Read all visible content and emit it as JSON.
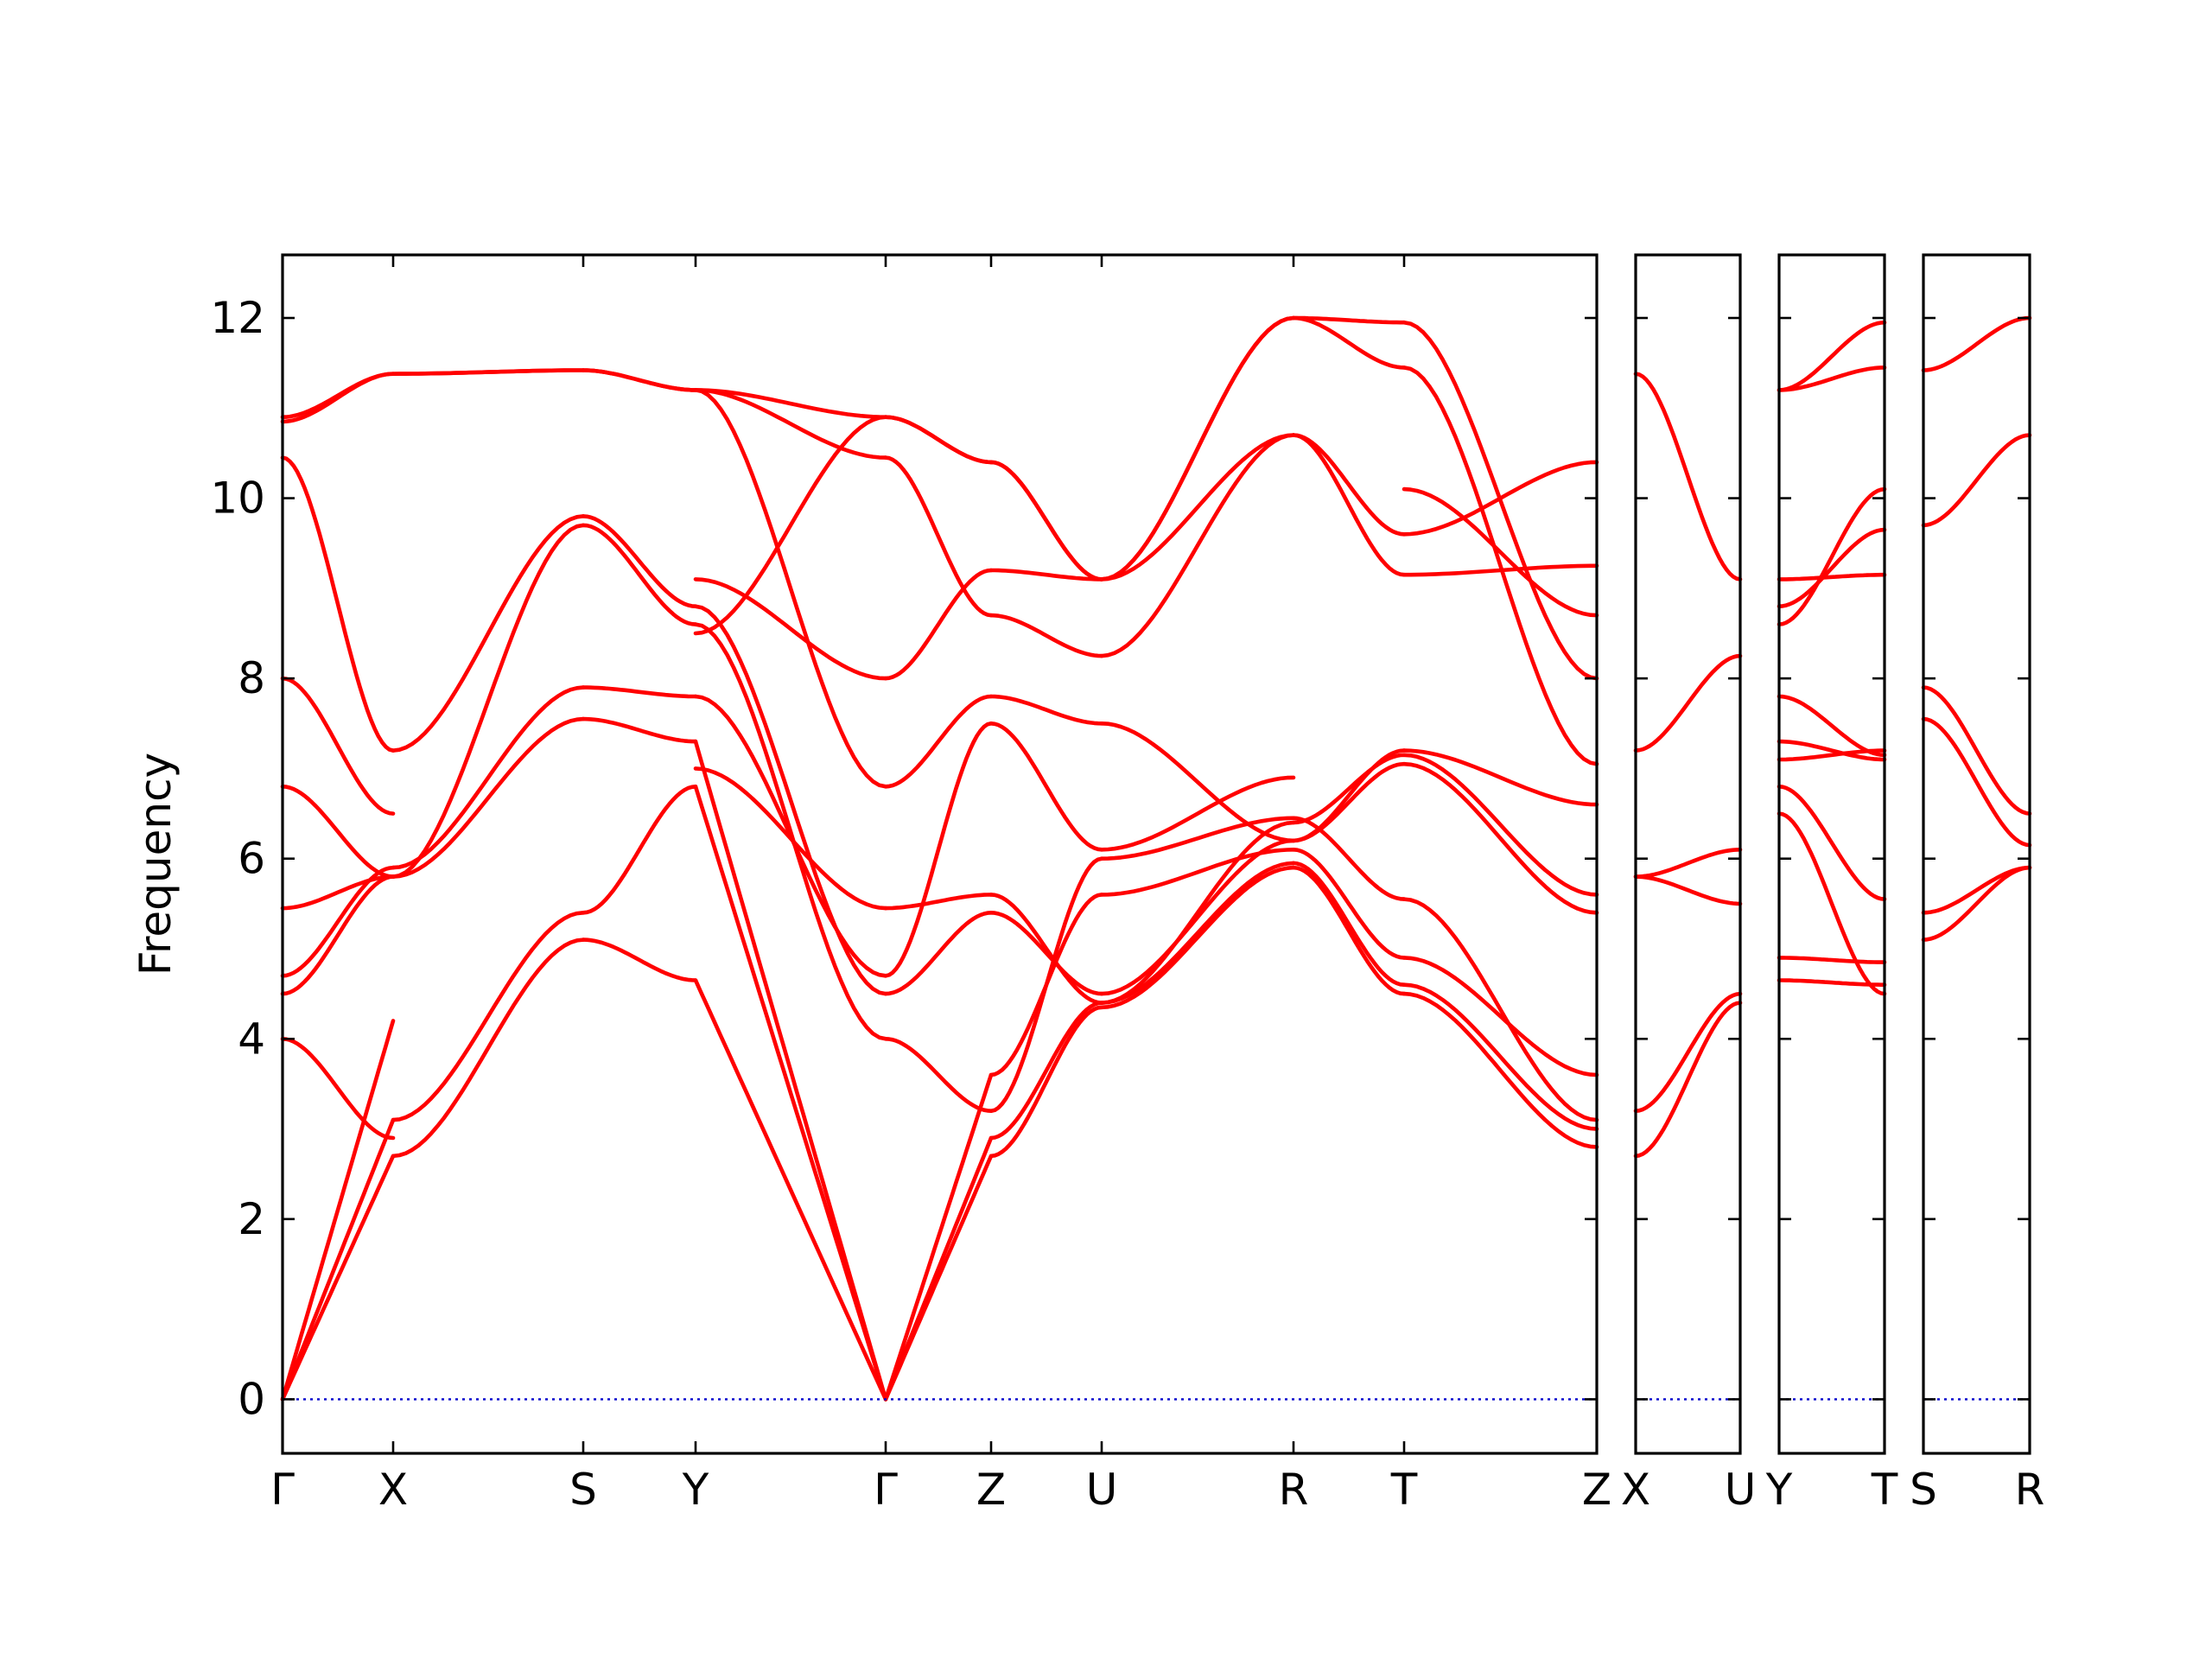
{
  "chart_data": {
    "type": "line",
    "ylabel": "Frequency",
    "ylim": [
      -0.6,
      12.7
    ],
    "yticks": [
      0,
      2,
      4,
      6,
      8,
      10,
      12
    ],
    "grid": false,
    "colors": {
      "bands": "#ff0000",
      "zero_line": "#0000cc",
      "frame": "#000000"
    },
    "panels": [
      {
        "segments": [
          {
            "from": "Γ",
            "to": "X",
            "bands": [
              [
                0,
                2.7
              ],
              [
                0,
                3.1
              ],
              [
                0,
                4.2
              ],
              [
                4.0,
                2.9
              ],
              [
                4.7,
                5.9
              ],
              [
                4.5,
                5.8
              ],
              [
                5.45,
                5.8
              ],
              [
                6.8,
                5.8
              ],
              [
                8.0,
                6.5
              ],
              [
                10.45,
                7.2
              ],
              [
                10.85,
                11.38
              ],
              [
                10.9,
                11.38
              ]
            ]
          },
          {
            "from": "X",
            "to": "S",
            "bands": [
              [
                2.7,
                5.1
              ],
              [
                3.1,
                5.4
              ],
              [
                5.8,
                7.55
              ],
              [
                5.9,
                7.9
              ],
              [
                5.8,
                9.7
              ],
              [
                7.2,
                9.8
              ],
              [
                11.38,
                11.42
              ],
              [
                11.38,
                11.42
              ]
            ]
          },
          {
            "from": "S",
            "to": "Y",
            "bands": [
              [
                5.1,
                4.65
              ],
              [
                5.4,
                6.8
              ],
              [
                7.55,
                7.3
              ],
              [
                7.9,
                7.8
              ],
              [
                9.7,
                8.6
              ],
              [
                9.8,
                8.8
              ],
              [
                11.42,
                11.2
              ],
              [
                11.42,
                11.2
              ]
            ]
          },
          {
            "from": "Y",
            "to": "Γ",
            "bands": [
              [
                4.65,
                0
              ],
              [
                6.8,
                0
              ],
              [
                7.3,
                0
              ],
              [
                7.8,
                4.7
              ],
              [
                8.6,
                4.0
              ],
              [
                8.8,
                4.5
              ],
              [
                11.2,
                6.8
              ],
              [
                11.2,
                10.45
              ],
              [
                7.0,
                5.45
              ],
              [
                9.1,
                8.0
              ],
              [
                11.2,
                10.9
              ],
              [
                8.5,
                10.9
              ]
            ]
          },
          {
            "from": "Γ",
            "to": "Z",
            "bands": [
              [
                0,
                2.7
              ],
              [
                0,
                2.9
              ],
              [
                0,
                3.6
              ],
              [
                4.0,
                3.2
              ],
              [
                4.5,
                5.4
              ],
              [
                5.45,
                5.6
              ],
              [
                6.8,
                7.8
              ],
              [
                8.0,
                9.2
              ],
              [
                10.45,
                8.7
              ],
              [
                10.9,
                10.4
              ],
              [
                10.9,
                10.4
              ],
              [
                4.7,
                7.5
              ]
            ]
          },
          {
            "from": "Z",
            "to": "U",
            "bands": [
              [
                2.7,
                4.35
              ],
              [
                2.9,
                4.4
              ],
              [
                3.6,
                5.6
              ],
              [
                3.2,
                6.0
              ],
              [
                5.4,
                4.5
              ],
              [
                5.6,
                4.4
              ],
              [
                7.8,
                7.5
              ],
              [
                9.2,
                9.1
              ],
              [
                8.7,
                8.25
              ],
              [
                10.4,
                9.1
              ],
              [
                10.4,
                9.1
              ],
              [
                7.5,
                6.1
              ]
            ]
          },
          {
            "from": "U",
            "to": "R",
            "bands": [
              [
                4.35,
                5.9
              ],
              [
                4.4,
                5.95
              ],
              [
                5.6,
                6.1
              ],
              [
                6.0,
                6.45
              ],
              [
                4.5,
                6.2
              ],
              [
                4.4,
                6.4
              ],
              [
                7.5,
                6.2
              ],
              [
                9.1,
                10.7
              ],
              [
                8.25,
                10.7
              ],
              [
                9.1,
                12.0
              ],
              [
                9.1,
                12.0
              ],
              [
                6.1,
                6.9
              ]
            ]
          },
          {
            "from": "R",
            "to": "T",
            "bands": [
              [
                5.9,
                4.5
              ],
              [
                5.95,
                4.6
              ],
              [
                6.1,
                4.9
              ],
              [
                6.45,
                5.55
              ],
              [
                6.2,
                7.05
              ],
              [
                6.4,
                7.15
              ],
              [
                6.2,
                7.2
              ],
              [
                10.7,
                9.15
              ],
              [
                10.7,
                9.6
              ],
              [
                12.0,
                11.45
              ],
              [
                12.0,
                11.95
              ]
            ]
          },
          {
            "from": "T",
            "to": "Z",
            "bands": [
              [
                4.5,
                2.8
              ],
              [
                4.6,
                3.0
              ],
              [
                4.9,
                3.6
              ],
              [
                5.55,
                3.1
              ],
              [
                7.05,
                5.4
              ],
              [
                7.15,
                5.6
              ],
              [
                7.2,
                6.6
              ],
              [
                9.15,
                9.25
              ],
              [
                9.6,
                10.4
              ],
              [
                11.45,
                7.05
              ],
              [
                11.95,
                8.0
              ],
              [
                10.1,
                8.7
              ]
            ]
          }
        ]
      },
      {
        "segments": [
          {
            "from": "X",
            "to": "U",
            "bands": [
              [
                2.7,
                4.4
              ],
              [
                3.2,
                4.5
              ],
              [
                5.8,
                6.1
              ],
              [
                5.8,
                5.5
              ],
              [
                7.2,
                8.25
              ],
              [
                11.38,
                9.1
              ]
            ]
          }
        ]
      },
      {
        "segments": [
          {
            "from": "Y",
            "to": "T",
            "bands": [
              [
                4.65,
                4.6
              ],
              [
                4.9,
                4.85
              ],
              [
                6.5,
                4.5
              ],
              [
                6.8,
                5.55
              ],
              [
                7.1,
                7.2
              ],
              [
                7.3,
                7.1
              ],
              [
                7.8,
                7.15
              ],
              [
                8.6,
                10.1
              ],
              [
                8.8,
                9.65
              ],
              [
                9.1,
                9.15
              ],
              [
                11.2,
                11.45
              ],
              [
                11.2,
                11.95
              ]
            ]
          }
        ]
      },
      {
        "segments": [
          {
            "from": "S",
            "to": "R",
            "bands": [
              [
                5.1,
                5.9
              ],
              [
                5.4,
                5.9
              ],
              [
                7.55,
                6.15
              ],
              [
                7.9,
                6.5
              ],
              [
                9.7,
                10.7
              ],
              [
                11.42,
                12.0
              ]
            ]
          }
        ]
      }
    ]
  }
}
